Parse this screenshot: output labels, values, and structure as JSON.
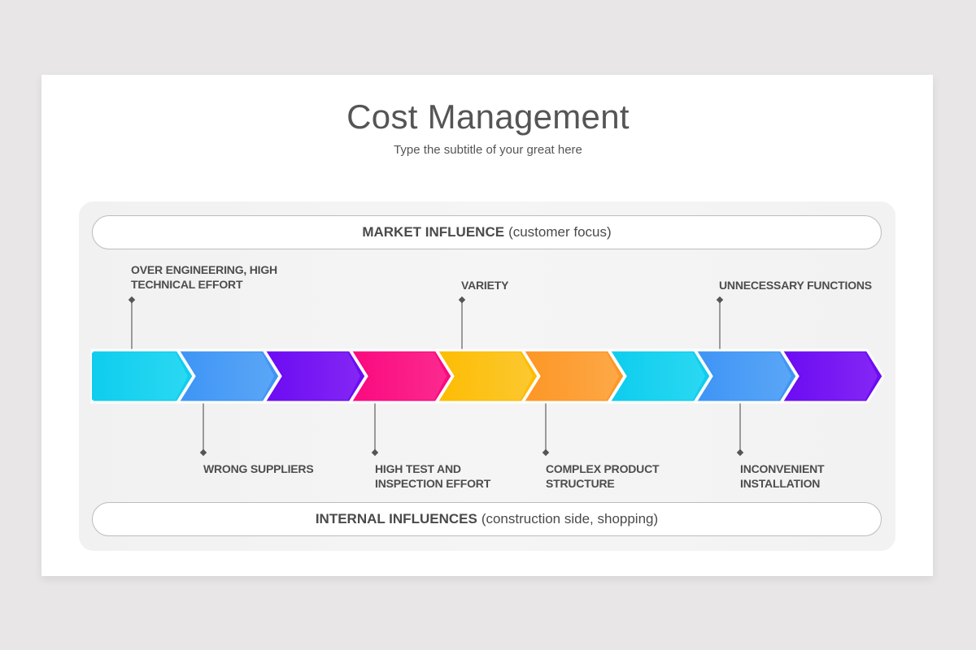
{
  "slide": {
    "title": "Cost Management",
    "subtitle": "Type the subtitle of your great here"
  },
  "top_band": {
    "bold": "MARKET INFLUENCE",
    "normal": "(customer focus)"
  },
  "bottom_band": {
    "bold": "INTERNAL INFLUENCES",
    "normal": "(construction side, shopping)"
  },
  "chevrons": [
    {
      "color": "#0fcdee",
      "light": "#2ad8f2"
    },
    {
      "color": "#3f95f5",
      "light": "#5aa6f7"
    },
    {
      "color": "#6c0cf3",
      "light": "#8426f4"
    },
    {
      "color": "#fb0a7f",
      "light": "#fb2a8f"
    },
    {
      "color": "#fdbd04",
      "light": "#fcc830"
    },
    {
      "color": "#fd9726",
      "light": "#fda847"
    },
    {
      "color": "#0fcdee",
      "light": "#2ad8f2"
    },
    {
      "color": "#3f95f5",
      "light": "#5aa6f7"
    },
    {
      "color": "#6c0cf3",
      "light": "#8426f4"
    }
  ],
  "top_labels": [
    {
      "lines": [
        "OVER ENGINEERING, HIGH",
        "TECHNICAL EFFORT"
      ]
    },
    {
      "lines": [
        "VARIETY"
      ]
    },
    {
      "lines": [
        "UNNECESSARY FUNCTIONS"
      ]
    }
  ],
  "bottom_labels": [
    {
      "lines": [
        "WRONG SUPPLIERS"
      ]
    },
    {
      "lines": [
        "HIGH TEST AND",
        "INSPECTION EFFORT"
      ]
    },
    {
      "lines": [
        "COMPLEX PRODUCT",
        "STRUCTURE"
      ]
    },
    {
      "lines": [
        "INCONVENIENT",
        "INSTALLATION"
      ]
    }
  ]
}
